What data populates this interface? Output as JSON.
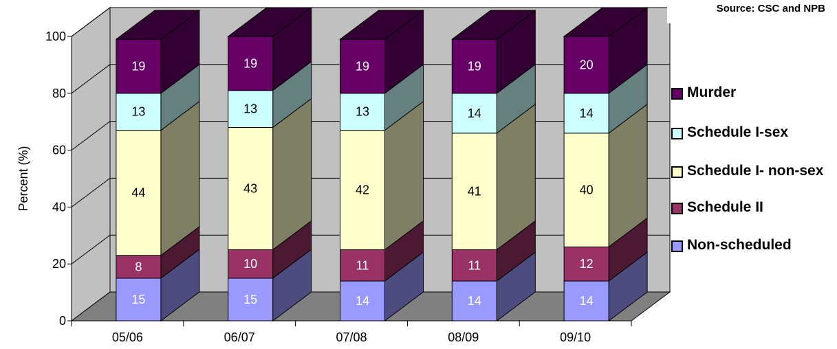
{
  "chart_data": {
    "type": "bar",
    "stacked": true,
    "three_d": true,
    "categories": [
      "05/06",
      "06/07",
      "07/08",
      "08/09",
      "09/10"
    ],
    "series": [
      {
        "name": "Non-scheduled",
        "values": [
          15,
          15,
          14,
          14,
          14
        ],
        "color": "#9999ff",
        "side_color": "#4c4c7f"
      },
      {
        "name": "Schedule II",
        "values": [
          8,
          10,
          11,
          11,
          12
        ],
        "color": "#993366",
        "side_color": "#4c1933"
      },
      {
        "name": "Schedule I- non-sex",
        "values": [
          44,
          43,
          42,
          41,
          40
        ],
        "color": "#ffffcc",
        "side_color": "#7f7f66"
      },
      {
        "name": "Schedule I-sex",
        "values": [
          13,
          13,
          13,
          14,
          14
        ],
        "color": "#ccffff",
        "side_color": "#667f7f"
      },
      {
        "name": "Murder",
        "values": [
          19,
          19,
          19,
          19,
          20
        ],
        "color": "#660066",
        "side_color": "#330033"
      }
    ],
    "ylabel": "Percent (%)",
    "ylim": [
      0,
      100
    ],
    "yticks": [
      0,
      20,
      40,
      60,
      80,
      100
    ],
    "grid": true,
    "legend_position": "right",
    "wall_color": "#c0c0c0",
    "floor_color": "#808080"
  },
  "source": "Source: CSC and NPB",
  "legend": [
    {
      "label": "Murder",
      "color": "#660066"
    },
    {
      "label": "Schedule I-sex",
      "color": "#ccffff"
    },
    {
      "label": "Schedule I- non-sex",
      "color": "#ffffcc"
    },
    {
      "label": "Schedule II",
      "color": "#993366"
    },
    {
      "label": "Non-scheduled",
      "color": "#9999ff"
    }
  ]
}
